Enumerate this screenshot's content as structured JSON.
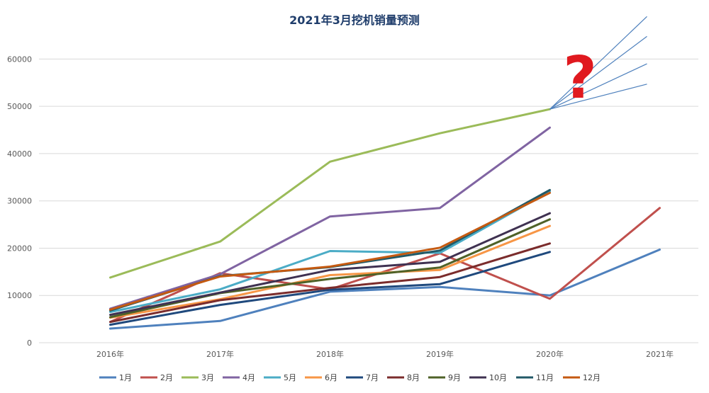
{
  "chart_data": {
    "type": "line",
    "title": "2021年3月挖机销量预测",
    "categories": [
      "2016年",
      "2017年",
      "2018年",
      "2019年",
      "2020年",
      "2021年"
    ],
    "ylim": [
      0,
      65000
    ],
    "yticks": [
      0,
      10000,
      20000,
      30000,
      40000,
      50000,
      60000
    ],
    "grid": true,
    "legend_position": "bottom",
    "annotation": "?",
    "series": [
      {
        "name": "1月",
        "color": "#4f81bd",
        "values": [
          3000,
          4600,
          10800,
          11800,
          10000,
          19700
        ]
      },
      {
        "name": "2月",
        "color": "#c0504d",
        "values": [
          4400,
          14700,
          11300,
          18900,
          9300,
          28500
        ]
      },
      {
        "name": "3月",
        "color": "#9bbb59",
        "values": [
          13800,
          21400,
          38300,
          44300,
          49400,
          null
        ]
      },
      {
        "name": "4月",
        "color": "#8064a2",
        "values": [
          7200,
          14500,
          26700,
          28500,
          45500,
          null
        ]
      },
      {
        "name": "5月",
        "color": "#4bacc6",
        "values": [
          6500,
          11300,
          19400,
          19000,
          32000,
          null
        ]
      },
      {
        "name": "6月",
        "color": "#f79646",
        "values": [
          5300,
          9200,
          14300,
          15400,
          24700,
          null
        ]
      },
      {
        "name": "7月",
        "color": "#1f497d",
        "values": [
          3800,
          8000,
          11200,
          12400,
          19200,
          null
        ]
      },
      {
        "name": "8月",
        "color": "#7b2c2c",
        "values": [
          4400,
          9000,
          11600,
          13900,
          21000,
          null
        ]
      },
      {
        "name": "9月",
        "color": "#4f6228",
        "values": [
          5400,
          10500,
          13500,
          15900,
          26100,
          null
        ]
      },
      {
        "name": "10月",
        "color": "#3f3151",
        "values": [
          5900,
          10600,
          15400,
          17100,
          27400,
          null
        ]
      },
      {
        "name": "11月",
        "color": "#215967",
        "values": [
          6800,
          14100,
          16000,
          19500,
          32300,
          null
        ]
      },
      {
        "name": "12月",
        "color": "#c55a11",
        "values": [
          7000,
          14000,
          16100,
          20100,
          31700,
          null
        ]
      }
    ],
    "projection": {
      "color": "#4f81bd",
      "from": [
        "2020年",
        49400
      ],
      "lines": [
        {
          "to": [
            "2021年",
            54700
          ]
        },
        {
          "to": [
            "2021年",
            59000
          ]
        },
        {
          "to": [
            "2021年",
            64800
          ]
        },
        {
          "to": [
            "2021年",
            69000
          ]
        }
      ]
    }
  }
}
